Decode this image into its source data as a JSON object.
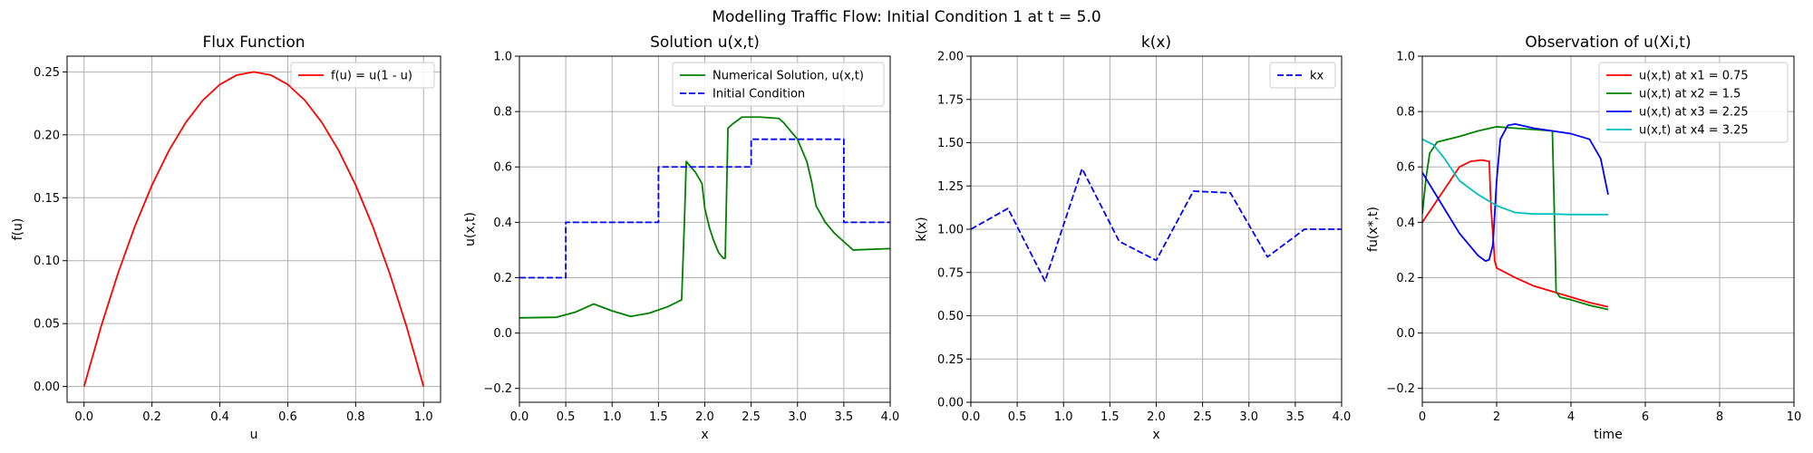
{
  "suptitle": "Modelling Traffic Flow: Initial Condition 1 at t = 5.0",
  "colors": {
    "red": "#ff0000",
    "green": "#008000",
    "blue": "#0000ff",
    "cyan": "#00bfbf",
    "grid": "#b0b0b0"
  },
  "chart_data": [
    {
      "type": "line",
      "title": "Flux Function",
      "xlabel": "u",
      "ylabel": "f(u)",
      "xlim": [
        -0.05,
        1.05
      ],
      "ylim": [
        -0.0125,
        0.2625
      ],
      "xticks": [
        0.0,
        0.2,
        0.4,
        0.6,
        0.8,
        1.0
      ],
      "xtick_labels": [
        "0.0",
        "0.2",
        "0.4",
        "0.6",
        "0.8",
        "1.0"
      ],
      "yticks": [
        0.0,
        0.05,
        0.1,
        0.15,
        0.2,
        0.25
      ],
      "ytick_labels": [
        "0.00",
        "0.05",
        "0.10",
        "0.15",
        "0.20",
        "0.25"
      ],
      "grid": true,
      "legend": "upper-right",
      "series": [
        {
          "name": "f(u) = u(1 - u)",
          "color": "#ff0000",
          "dash": "solid",
          "x": [
            0,
            0.05,
            0.1,
            0.15,
            0.2,
            0.25,
            0.3,
            0.35,
            0.4,
            0.45,
            0.5,
            0.55,
            0.6,
            0.65,
            0.7,
            0.75,
            0.8,
            0.85,
            0.9,
            0.95,
            1.0
          ],
          "y": [
            0,
            0.0475,
            0.09,
            0.1275,
            0.16,
            0.1875,
            0.21,
            0.2275,
            0.24,
            0.2475,
            0.25,
            0.2475,
            0.24,
            0.2275,
            0.21,
            0.1875,
            0.16,
            0.1275,
            0.09,
            0.0475,
            0
          ]
        }
      ]
    },
    {
      "type": "line",
      "title": "Solution u(x,t)",
      "xlabel": "x",
      "ylabel": "u(x,t)",
      "xlim": [
        0,
        4
      ],
      "ylim": [
        -0.25,
        1.0
      ],
      "xticks": [
        0.0,
        0.5,
        1.0,
        1.5,
        2.0,
        2.5,
        3.0,
        3.5,
        4.0
      ],
      "xtick_labels": [
        "0.0",
        "0.5",
        "1.0",
        "1.5",
        "2.0",
        "2.5",
        "3.0",
        "3.5",
        "4.0"
      ],
      "yticks": [
        -0.2,
        0.0,
        0.2,
        0.4,
        0.6,
        0.8,
        1.0
      ],
      "ytick_labels": [
        "−0.2",
        "0.0",
        "0.2",
        "0.4",
        "0.6",
        "0.8",
        "1.0"
      ],
      "grid": true,
      "legend": "upper-right",
      "series": [
        {
          "name": "Numerical Solution, u(x,t)",
          "color": "#008000",
          "dash": "solid",
          "x": [
            0,
            0.4,
            0.6,
            0.8,
            1.0,
            1.2,
            1.4,
            1.6,
            1.75,
            1.78,
            1.8,
            1.9,
            1.97,
            2.0,
            2.05,
            2.1,
            2.15,
            2.2,
            2.22,
            2.25,
            2.3,
            2.4,
            2.6,
            2.8,
            2.85,
            2.9,
            3.0,
            3.1,
            3.15,
            3.2,
            3.3,
            3.4,
            3.5,
            3.6,
            4.0
          ],
          "y": [
            0.055,
            0.057,
            0.075,
            0.105,
            0.08,
            0.06,
            0.072,
            0.095,
            0.12,
            0.4,
            0.62,
            0.58,
            0.54,
            0.45,
            0.38,
            0.33,
            0.29,
            0.27,
            0.27,
            0.74,
            0.755,
            0.78,
            0.78,
            0.775,
            0.76,
            0.74,
            0.7,
            0.62,
            0.55,
            0.46,
            0.4,
            0.36,
            0.33,
            0.3,
            0.305
          ]
        },
        {
          "name": "Initial Condition",
          "color": "#0000ff",
          "dash": "dashed",
          "x": [
            0,
            0.5,
            0.5,
            1.5,
            1.5,
            2.5,
            2.5,
            3.5,
            3.5,
            4.0
          ],
          "y": [
            0.2,
            0.2,
            0.4,
            0.4,
            0.6,
            0.6,
            0.7,
            0.7,
            0.4,
            0.4
          ]
        }
      ]
    },
    {
      "type": "line",
      "title": "k(x)",
      "xlabel": "x",
      "ylabel": "k(x)",
      "xlim": [
        0,
        4
      ],
      "ylim": [
        0,
        2.0
      ],
      "xticks": [
        0.0,
        0.5,
        1.0,
        1.5,
        2.0,
        2.5,
        3.0,
        3.5,
        4.0
      ],
      "xtick_labels": [
        "0.0",
        "0.5",
        "1.0",
        "1.5",
        "2.0",
        "2.5",
        "3.0",
        "3.5",
        "4.0"
      ],
      "yticks": [
        0.0,
        0.25,
        0.5,
        0.75,
        1.0,
        1.25,
        1.5,
        1.75,
        2.0
      ],
      "ytick_labels": [
        "0.00",
        "0.25",
        "0.50",
        "0.75",
        "1.00",
        "1.25",
        "1.50",
        "1.75",
        "2.00"
      ],
      "grid": true,
      "legend": "upper-right",
      "series": [
        {
          "name": "kx",
          "color": "#0000ff",
          "dash": "dashed",
          "x": [
            0,
            0.4,
            0.8,
            1.2,
            1.6,
            2.0,
            2.4,
            2.8,
            3.2,
            3.6,
            4.0
          ],
          "y": [
            1.0,
            1.12,
            0.7,
            1.35,
            0.93,
            0.82,
            1.22,
            1.21,
            0.84,
            1.0,
            1.0
          ]
        }
      ]
    },
    {
      "type": "line",
      "title": "Observation of u(Xi,t)",
      "xlabel": "time",
      "ylabel": "fu(x*,t)",
      "xlim": [
        0,
        10
      ],
      "ylim": [
        -0.25,
        1.0
      ],
      "xticks": [
        0,
        2,
        4,
        6,
        8,
        10
      ],
      "xtick_labels": [
        "0",
        "2",
        "4",
        "6",
        "8",
        "10"
      ],
      "yticks": [
        -0.2,
        0.0,
        0.2,
        0.4,
        0.6,
        0.8,
        1.0
      ],
      "ytick_labels": [
        "−0.2",
        "0.0",
        "0.2",
        "0.4",
        "0.6",
        "0.8",
        "1.0"
      ],
      "grid": true,
      "legend": "upper-right",
      "series": [
        {
          "name": "u(x,t) at x1 = 0.75",
          "color": "#ff0000",
          "dash": "solid",
          "x": [
            0,
            0.5,
            1.0,
            1.3,
            1.6,
            1.8,
            1.85,
            1.95,
            2.0,
            2.5,
            3.0,
            3.5,
            4.0,
            4.5,
            5.0
          ],
          "y": [
            0.4,
            0.5,
            0.6,
            0.62,
            0.625,
            0.62,
            0.45,
            0.26,
            0.235,
            0.2,
            0.17,
            0.15,
            0.13,
            0.11,
            0.095
          ]
        },
        {
          "name": "u(x,t) at x2 = 1.5",
          "color": "#008000",
          "dash": "solid",
          "x": [
            0,
            0.1,
            0.2,
            0.4,
            1.0,
            1.5,
            2.0,
            2.5,
            3.0,
            3.5,
            3.55,
            3.6,
            3.7,
            4.0,
            4.5,
            5.0
          ],
          "y": [
            0.43,
            0.56,
            0.65,
            0.69,
            0.71,
            0.73,
            0.745,
            0.74,
            0.735,
            0.73,
            0.45,
            0.15,
            0.13,
            0.12,
            0.1,
            0.085
          ]
        },
        {
          "name": "u(x,t) at x3 = 2.25",
          "color": "#0000ff",
          "dash": "solid",
          "x": [
            0,
            0.5,
            1.0,
            1.5,
            1.7,
            1.8,
            1.9,
            2.0,
            2.1,
            2.3,
            2.5,
            3.0,
            3.5,
            4.0,
            4.5,
            4.8,
            5.0
          ],
          "y": [
            0.58,
            0.47,
            0.36,
            0.28,
            0.26,
            0.265,
            0.32,
            0.55,
            0.7,
            0.75,
            0.755,
            0.74,
            0.73,
            0.72,
            0.7,
            0.63,
            0.5
          ]
        },
        {
          "name": "u(x,t) at x4 = 3.25",
          "color": "#00bfbf",
          "dash": "solid",
          "x": [
            0,
            0.3,
            0.6,
            1.0,
            1.5,
            2.0,
            2.5,
            3.0,
            3.5,
            4.0,
            4.5,
            5.0
          ],
          "y": [
            0.7,
            0.68,
            0.63,
            0.55,
            0.5,
            0.46,
            0.435,
            0.43,
            0.43,
            0.428,
            0.428,
            0.428
          ]
        }
      ]
    }
  ]
}
